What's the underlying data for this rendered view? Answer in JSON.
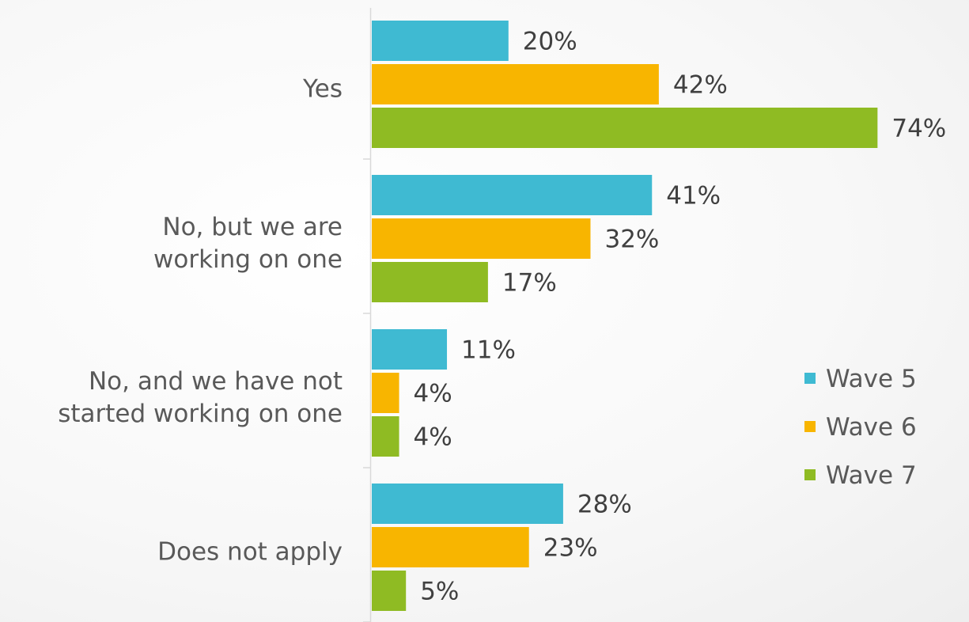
{
  "chart_data": {
    "type": "bar",
    "orientation": "horizontal",
    "title": "",
    "xlabel": "",
    "ylabel": "",
    "categories": [
      [
        "Yes"
      ],
      [
        "No, but we are",
        "working on one"
      ],
      [
        "No, and we have not",
        "started working on one"
      ],
      [
        "Does not apply"
      ]
    ],
    "series": [
      {
        "name": "Wave 5",
        "color": "#3fbad2",
        "values": [
          20,
          41,
          11,
          28
        ]
      },
      {
        "name": "Wave 6",
        "color": "#f8b500",
        "values": [
          42,
          32,
          4,
          23
        ]
      },
      {
        "name": "Wave 7",
        "color": "#8fbb23",
        "values": [
          74,
          17,
          4,
          5
        ]
      }
    ],
    "value_suffix": "%",
    "xlim": [
      0,
      80
    ],
    "grid": false,
    "legend_position": "right"
  }
}
